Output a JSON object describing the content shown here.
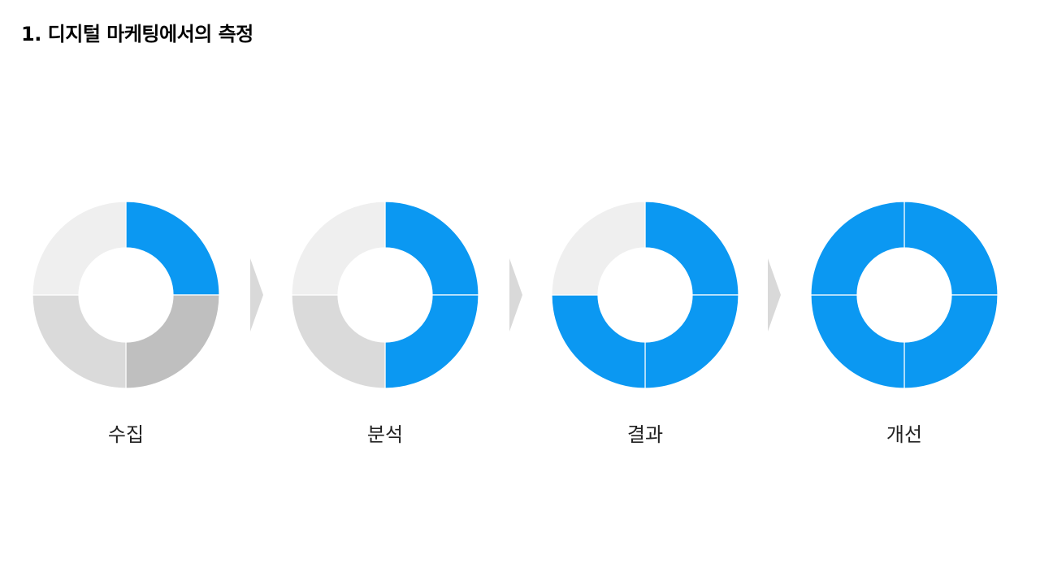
{
  "title": "1. 디지털 마케팅에서의 측정",
  "colors": {
    "accent": "#0b98f2",
    "empty_light": "#efefef",
    "empty_mid": "#dadada",
    "empty_dark": "#bfbfbf",
    "arrow": "#d9d9d9",
    "divider": "#ffffff"
  },
  "stages": [
    {
      "label": "수집",
      "quadrants_filled": 1,
      "fill_fraction": 0.25
    },
    {
      "label": "분석",
      "quadrants_filled": 2,
      "fill_fraction": 0.5
    },
    {
      "label": "결과",
      "quadrants_filled": 3,
      "fill_fraction": 0.75
    },
    {
      "label": "개선",
      "quadrants_filled": 4,
      "fill_fraction": 1.0
    }
  ]
}
